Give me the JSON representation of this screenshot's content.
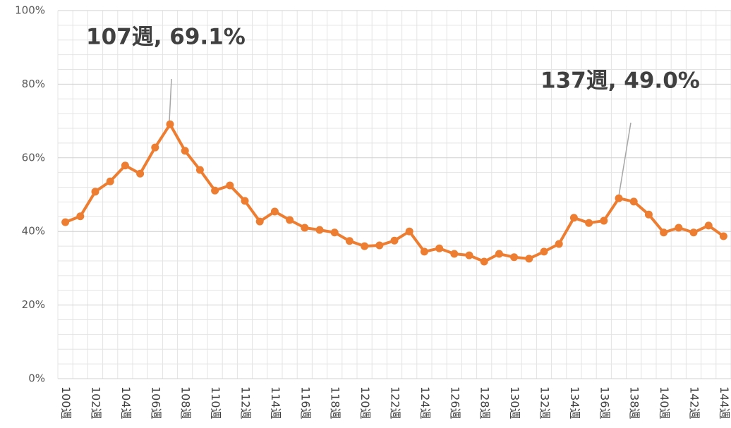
{
  "chart_data": {
    "type": "line",
    "categories": [
      "100週",
      null,
      "102週",
      null,
      "104週",
      null,
      "106週",
      null,
      "108週",
      null,
      "110週",
      null,
      "112週",
      null,
      "114週",
      null,
      "116週",
      null,
      "118週",
      null,
      "120週",
      null,
      "122週",
      null,
      "124週",
      null,
      "126週",
      null,
      "128週",
      null,
      "130週",
      null,
      "132週",
      null,
      "134週",
      null,
      "136週",
      null,
      "138週",
      null,
      "140週",
      null,
      "142週",
      null,
      "144週"
    ],
    "series": [
      {
        "color": "#ED7D31",
        "values": [
          42.5,
          44.1,
          50.8,
          53.6,
          57.9,
          55.7,
          62.8,
          69.1,
          61.9,
          56.7,
          51.1,
          52.5,
          48.3,
          42.7,
          45.4,
          43.1,
          41.0,
          40.4,
          39.7,
          37.4,
          36.0,
          36.2,
          37.5,
          40.0,
          34.5,
          35.4,
          33.9,
          33.5,
          31.8,
          33.9,
          33.0,
          32.6,
          34.5,
          36.6,
          43.7,
          42.3,
          42.9,
          49.0,
          48.1,
          44.6,
          39.7,
          41.0,
          39.7,
          41.6,
          38.7
        ]
      }
    ],
    "ylim": [
      0,
      100
    ],
    "yticks": [
      {
        "value": 0,
        "label": "0%"
      },
      {
        "value": 20,
        "label": "20%"
      },
      {
        "value": 40,
        "label": "40%"
      },
      {
        "value": 60,
        "label": "60%"
      },
      {
        "value": 80,
        "label": "80%"
      },
      {
        "value": 100,
        "label": "100%"
      }
    ],
    "grid": true,
    "annotations": [
      "107週, 69.1%",
      "137週, 49.0%"
    ]
  }
}
